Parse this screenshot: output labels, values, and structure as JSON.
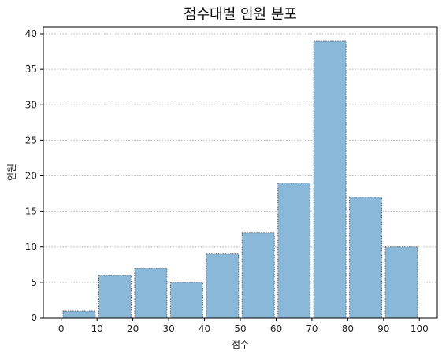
{
  "chart_data": {
    "type": "bar",
    "title": "점수대별 인원 분포",
    "xlabel": "점수",
    "ylabel": "인원",
    "bins": [
      {
        "start": 0,
        "end": 10,
        "value": 1
      },
      {
        "start": 10,
        "end": 20,
        "value": 6
      },
      {
        "start": 20,
        "end": 30,
        "value": 7
      },
      {
        "start": 30,
        "end": 40,
        "value": 5
      },
      {
        "start": 40,
        "end": 50,
        "value": 9
      },
      {
        "start": 50,
        "end": 60,
        "value": 12
      },
      {
        "start": 60,
        "end": 70,
        "value": 19
      },
      {
        "start": 70,
        "end": 80,
        "value": 39
      },
      {
        "start": 80,
        "end": 90,
        "value": 17
      },
      {
        "start": 90,
        "end": 100,
        "value": 10
      }
    ],
    "xlim": [
      -5,
      105
    ],
    "ylim": [
      0,
      41
    ],
    "xticks": [
      0,
      10,
      20,
      30,
      40,
      50,
      60,
      70,
      80,
      90,
      100
    ],
    "yticks": [
      0,
      5,
      10,
      15,
      20,
      25,
      30,
      35,
      40
    ],
    "grid": "y-dotted",
    "colors": {
      "bar": "#8ab8d8",
      "edge": "#666666"
    }
  }
}
